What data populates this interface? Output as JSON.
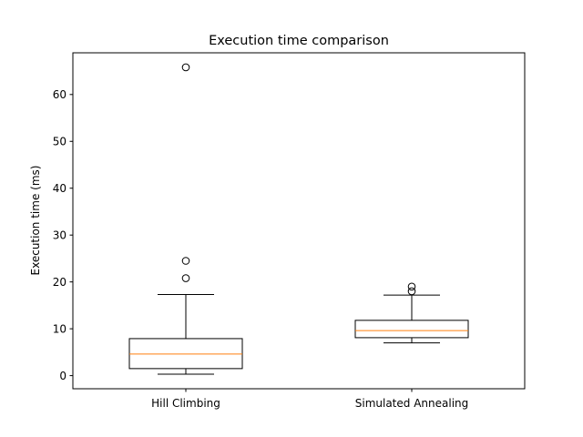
{
  "chart_data": {
    "type": "box",
    "title": "Execution time comparison",
    "xlabel": "",
    "ylabel": "Execution time (ms)",
    "ylim": [
      -2.8,
      68.9
    ],
    "yticks": [
      0,
      10,
      20,
      30,
      40,
      50,
      60
    ],
    "grid": false,
    "colors": {
      "box": "#000000",
      "median": "#ff7f0e",
      "flier": "#000000"
    },
    "categories": [
      "Hill Climbing",
      "Simulated Annealing"
    ],
    "boxes": [
      {
        "label": "Hill Climbing",
        "whisker_low": 0.3,
        "q1": 1.5,
        "median": 4.6,
        "q3": 7.9,
        "whisker_high": 17.3,
        "fliers": [
          20.8,
          24.5,
          65.8
        ]
      },
      {
        "label": "Simulated Annealing",
        "whisker_low": 7.0,
        "q1": 8.1,
        "median": 9.6,
        "q3": 11.8,
        "whisker_high": 17.2,
        "fliers": [
          18.0,
          19.0
        ]
      }
    ]
  }
}
